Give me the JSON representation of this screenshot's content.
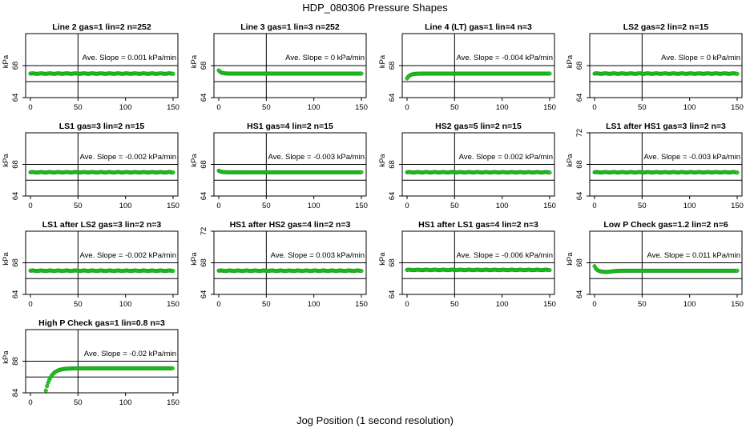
{
  "figure": {
    "title": "HDP_080306  Pressure Shapes",
    "xlabel": "Jog Position (1 second resolution)",
    "ylabel": "kPa",
    "slope_prefix": "Ave. Slope = ",
    "slope_unit": "kPa/min",
    "point_color": "#22cc22",
    "point_edge_color": "#118811"
  },
  "chart_data": [
    {
      "type": "scatter",
      "title": "Line 2 gas=1 lin=2 n=252",
      "slope": "0.001",
      "xlim": [
        0,
        150
      ],
      "ylim": [
        64,
        72
      ],
      "yticks": [
        "64",
        "68"
      ],
      "xticks": [
        "0",
        "50",
        "100",
        "150"
      ],
      "hlines": [
        66,
        68
      ],
      "vline": 50,
      "x_range": [
        0,
        150
      ],
      "level": 67.0,
      "curve": "flat"
    },
    {
      "type": "scatter",
      "title": "Line 3 gas=1 lin=3 n=252",
      "slope": "0",
      "xlim": [
        0,
        150
      ],
      "ylim": [
        64,
        72
      ],
      "yticks": [
        "64",
        "68"
      ],
      "xticks": [
        "0",
        "50",
        "100",
        "150"
      ],
      "hlines": [
        66,
        68
      ],
      "vline": 50,
      "x_range": [
        0,
        150
      ],
      "level": 67.0,
      "start": 67.4,
      "curve": "drop"
    },
    {
      "type": "scatter",
      "title": "Line 4 (LT) gas=1 lin=4 n=3",
      "slope": "-0.004",
      "xlim": [
        0,
        150
      ],
      "ylim": [
        64,
        72
      ],
      "yticks": [
        "64",
        "68"
      ],
      "xticks": [
        "0",
        "50",
        "100",
        "150"
      ],
      "hlines": [
        66,
        68
      ],
      "vline": 50,
      "x_range": [
        0,
        150
      ],
      "level": 67.0,
      "start": 66.4,
      "curve": "rise"
    },
    {
      "type": "scatter",
      "title": "LS2 gas=2 lin=2 n=15",
      "slope": "0",
      "xlim": [
        0,
        150
      ],
      "ylim": [
        64,
        72
      ],
      "yticks": [
        "64",
        "68"
      ],
      "xticks": [
        "0",
        "50",
        "100",
        "150"
      ],
      "hlines": [
        66,
        68
      ],
      "vline": 50,
      "x_range": [
        0,
        150
      ],
      "level": 67.0,
      "curve": "flat"
    },
    {
      "type": "scatter",
      "title": "LS1 gas=3 lin=2 n=15",
      "slope": "-0.002",
      "xlim": [
        0,
        150
      ],
      "ylim": [
        64,
        72
      ],
      "yticks": [
        "64",
        "68"
      ],
      "xticks": [
        "0",
        "50",
        "100",
        "150"
      ],
      "hlines": [
        66,
        68
      ],
      "vline": 50,
      "x_range": [
        0,
        150
      ],
      "level": 67.0,
      "curve": "flat"
    },
    {
      "type": "scatter",
      "title": "HS1 gas=4 lin=2 n=15",
      "slope": "-0.003",
      "xlim": [
        0,
        150
      ],
      "ylim": [
        64,
        72
      ],
      "yticks": [
        "64",
        "68"
      ],
      "xticks": [
        "0",
        "50",
        "100",
        "150"
      ],
      "hlines": [
        66,
        68
      ],
      "vline": 50,
      "x_range": [
        0,
        150
      ],
      "level": 67.0,
      "start": 67.2,
      "curve": "drop"
    },
    {
      "type": "scatter",
      "title": "HS2 gas=5 lin=2 n=15",
      "slope": "0.002",
      "xlim": [
        0,
        150
      ],
      "ylim": [
        64,
        72
      ],
      "yticks": [
        "64",
        "68"
      ],
      "xticks": [
        "0",
        "50",
        "100",
        "150"
      ],
      "hlines": [
        66,
        68
      ],
      "vline": 50,
      "x_range": [
        0,
        150
      ],
      "level": 67.0,
      "curve": "flat"
    },
    {
      "type": "scatter",
      "title": "LS1 after HS1 gas=3 lin=2 n=3",
      "slope": "-0.003",
      "xlim": [
        0,
        150
      ],
      "ylim": [
        64,
        72
      ],
      "yticks": [
        "64",
        "68",
        "72"
      ],
      "xticks": [
        "0",
        "50",
        "100",
        "150"
      ],
      "hlines": [
        66,
        68
      ],
      "vline": 50,
      "x_range": [
        0,
        150
      ],
      "level": 67.0,
      "curve": "flat"
    },
    {
      "type": "scatter",
      "title": "LS1 after LS2 gas=3 lin=2 n=3",
      "slope": "-0.002",
      "xlim": [
        0,
        150
      ],
      "ylim": [
        64,
        72
      ],
      "yticks": [
        "64",
        "68"
      ],
      "xticks": [
        "0",
        "50",
        "100",
        "150"
      ],
      "hlines": [
        66,
        68
      ],
      "vline": 50,
      "x_range": [
        0,
        150
      ],
      "level": 67.0,
      "curve": "flat"
    },
    {
      "type": "scatter",
      "title": "HS1 after HS2 gas=4 lin=2 n=3",
      "slope": "0.003",
      "xlim": [
        0,
        150
      ],
      "ylim": [
        64,
        72
      ],
      "yticks": [
        "64",
        "68",
        "72"
      ],
      "xticks": [
        "0",
        "50",
        "100",
        "150"
      ],
      "hlines": [
        66,
        68
      ],
      "vline": 50,
      "x_range": [
        0,
        150
      ],
      "level": 67.0,
      "curve": "flat"
    },
    {
      "type": "scatter",
      "title": "HS1 after LS1 gas=4 lin=2 n=3",
      "slope": "-0.006",
      "xlim": [
        0,
        150
      ],
      "ylim": [
        64,
        72
      ],
      "yticks": [
        "64",
        "68"
      ],
      "xticks": [
        "0",
        "50",
        "100",
        "150"
      ],
      "hlines": [
        66,
        68
      ],
      "vline": 50,
      "x_range": [
        0,
        150
      ],
      "level": 67.1,
      "curve": "flat"
    },
    {
      "type": "scatter",
      "title": "Low P Check gas=1.2 lin=2 n=6",
      "slope": "0.011",
      "xlim": [
        0,
        150
      ],
      "ylim": [
        64,
        72
      ],
      "yticks": [
        "64",
        "68"
      ],
      "xticks": [
        "0",
        "50",
        "100",
        "150"
      ],
      "hlines": [
        66,
        68
      ],
      "vline": 50,
      "x_range": [
        0,
        150
      ],
      "level": 67.0,
      "start": 67.6,
      "curve": "dip"
    },
    {
      "type": "scatter",
      "title": "High P Check gas=1 lin=0.8 n=3",
      "slope": "-0.02",
      "xlim": [
        0,
        150
      ],
      "ylim": [
        84,
        92
      ],
      "yticks": [
        "84",
        "88"
      ],
      "xticks": [
        "0",
        "50",
        "100",
        "150"
      ],
      "hlines": [
        86,
        88
      ],
      "vline": 50,
      "x_range": [
        15,
        150
      ],
      "level": 87.1,
      "start": 83.6,
      "curve": "saturate"
    }
  ]
}
